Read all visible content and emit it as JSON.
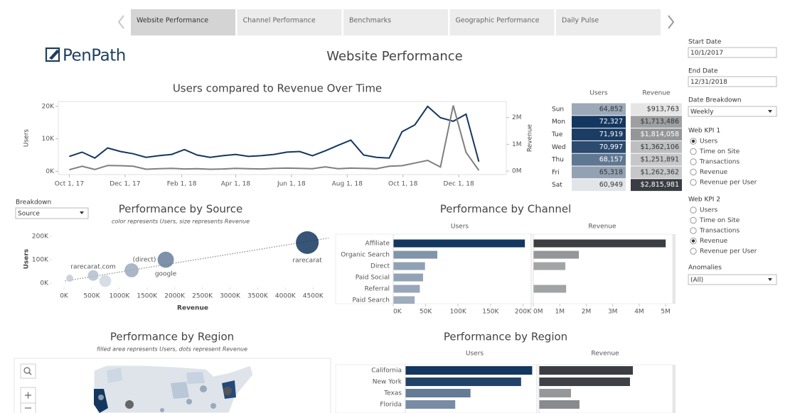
{
  "tabs": [
    "Website Performance",
    "Channel Performance",
    "Benchmarks",
    "Geographic Performance",
    "Daily Pulse"
  ],
  "active_tab": 0,
  "logo": "PenPath",
  "page_title": "Website Performance",
  "filters": {
    "start_date_label": "Start Date",
    "start_date": "10/1/2017",
    "end_date_label": "End Date",
    "end_date": "12/31/2018",
    "date_breakdown_label": "Date Breakdown",
    "date_breakdown": "Weekly",
    "kpi1_label": "Web KPI 1",
    "kpi1_options": [
      "Users",
      "Time on Site",
      "Transactions",
      "Revenue",
      "Revenue per User"
    ],
    "kpi1_selected": 0,
    "kpi2_label": "Web KPI 2",
    "kpi2_options": [
      "Users",
      "Time on Site",
      "Transactions",
      "Revenue",
      "Revenue per User"
    ],
    "kpi2_selected": 3,
    "anomalies_label": "Anomalies",
    "anomalies": "(All)"
  },
  "breakdown": {
    "label": "Breakdown",
    "value": "Source"
  },
  "chart_data": [
    {
      "type": "line",
      "title": "Users compared to Revenue Over Time",
      "x": [
        "2017-10-01",
        "2017-10-15",
        "2017-10-29",
        "2017-11-12",
        "2017-11-26",
        "2017-12-10",
        "2017-12-24",
        "2018-01-07",
        "2018-01-21",
        "2018-02-04",
        "2018-02-18",
        "2018-03-04",
        "2018-03-18",
        "2018-04-01",
        "2018-04-15",
        "2018-04-29",
        "2018-05-13",
        "2018-05-27",
        "2018-06-10",
        "2018-06-24",
        "2018-07-08",
        "2018-07-22",
        "2018-08-05",
        "2018-08-19",
        "2018-09-02",
        "2018-09-16",
        "2018-09-30",
        "2018-10-14",
        "2018-10-28",
        "2018-11-11",
        "2018-11-25",
        "2018-12-09",
        "2018-12-23"
      ],
      "xlim": [
        "2017-09-19",
        "2019-01-22"
      ],
      "xticks": [
        {
          "value": "2017-10-01",
          "label": "Oct 1, 17"
        },
        {
          "value": "2017-12-01",
          "label": "Dec 1, 17"
        },
        {
          "value": "2018-02-01",
          "label": "Feb 1, 18"
        },
        {
          "value": "2018-04-01",
          "label": "Apr 1, 18"
        },
        {
          "value": "2018-06-01",
          "label": "Jun 1, 18"
        },
        {
          "value": "2018-08-01",
          "label": "Aug 1, 18"
        },
        {
          "value": "2018-10-01",
          "label": "Oct 1, 18"
        },
        {
          "value": "2018-12-01",
          "label": "Dec 1, 18"
        }
      ],
      "ylim": [
        -1000,
        21500
      ],
      "yticks": [
        {
          "value": 0,
          "label": "0K"
        },
        {
          "value": 10000,
          "label": "10K"
        },
        {
          "value": 20000,
          "label": "20K"
        }
      ],
      "y2lim": [
        -130000,
        2600000
      ],
      "y2ticks": [
        {
          "value": 0,
          "label": "0M"
        },
        {
          "value": 1000000,
          "label": "1M"
        },
        {
          "value": 2000000,
          "label": "2M"
        }
      ],
      "series": [
        {
          "name": "Users",
          "color": "#14375f",
          "values": [
            4600,
            5900,
            4100,
            7200,
            6100,
            5400,
            4300,
            4800,
            5200,
            6700,
            5000,
            4300,
            4800,
            5200,
            4600,
            4800,
            5200,
            5900,
            6100,
            4800,
            6300,
            8000,
            9600,
            5000,
            4300,
            4100,
            12200,
            14300,
            20000,
            16500,
            15400,
            17600,
            3000
          ]
        },
        {
          "name": "Revenue",
          "color": "#7f7f7f",
          "axis": "y2",
          "values": [
            50000,
            180000,
            60000,
            210000,
            200000,
            180000,
            70000,
            90000,
            100000,
            80000,
            90000,
            70000,
            80000,
            100000,
            90000,
            80000,
            100000,
            110000,
            100000,
            90000,
            160000,
            90000,
            110000,
            100000,
            90000,
            180000,
            200000,
            300000,
            400000,
            150000,
            2450000,
            700000,
            30000
          ]
        }
      ]
    },
    {
      "type": "table",
      "categories": [
        "Sun",
        "Mon",
        "Tue",
        "Wed",
        "Thu",
        "Fri",
        "Sat"
      ],
      "series": [
        {
          "name": "Users",
          "color": "#14375f",
          "values": [
            64852,
            72327,
            71919,
            70997,
            68157,
            65318,
            60949
          ],
          "value_labels": [
            "64,852",
            "72,327",
            "71,919",
            "70,997",
            "68,157",
            "65,318",
            "60,949"
          ]
        },
        {
          "name": "Revenue",
          "color": "#3a3d42",
          "values": [
            913763,
            1713486,
            1814058,
            1362106,
            1251891,
            1262362,
            2815981
          ],
          "value_labels": [
            "$913,763",
            "$1,713,486",
            "$1,814,058",
            "$1,362,106",
            "$1,251,891",
            "$1,262,362",
            "$2,815,981"
          ]
        }
      ]
    },
    {
      "type": "scatter",
      "title": "Performance by Source",
      "subtitle": "color represents Users, size represents Revenue",
      "xlabel": "Revenue",
      "ylabel": "Users",
      "x": [
        4396000,
        1838000,
        1221000,
        527000,
        103000,
        745000
      ],
      "values": [
        173000,
        100000,
        55000,
        33000,
        21000,
        9000
      ],
      "labels": [
        "rarecarat",
        "google",
        "(direct)",
        "rarecarat.com",
        null,
        null
      ],
      "color": "#14375f",
      "xlim": [
        -129000,
        4780000
      ],
      "xticks": [
        {
          "value": 0,
          "label": "0K"
        },
        {
          "value": 500000,
          "label": "500K"
        },
        {
          "value": 1000000,
          "label": "1000K"
        },
        {
          "value": 1500000,
          "label": "1500K"
        },
        {
          "value": 2000000,
          "label": "2000K"
        },
        {
          "value": 2500000,
          "label": "2500K"
        },
        {
          "value": 3000000,
          "label": "3000K"
        },
        {
          "value": 3500000,
          "label": "3500K"
        },
        {
          "value": 4000000,
          "label": "4000K"
        },
        {
          "value": 4500000,
          "label": "4500K"
        }
      ],
      "ylim": [
        -18000,
        224000
      ],
      "yticks": [
        {
          "value": 0,
          "label": "0K"
        },
        {
          "value": 100000,
          "label": "100K"
        },
        {
          "value": 200000,
          "label": "200K"
        }
      ],
      "trendline": true
    },
    {
      "type": "bar",
      "orientation": "horizontal",
      "title": "Performance by Channel",
      "categories": [
        "Affiliate",
        "Organic Search",
        "Direct",
        "Paid Social",
        "Referral",
        "Paid Search"
      ],
      "series": [
        {
          "name": "Users",
          "color": "#14375f",
          "values": [
            203000,
            68000,
            49000,
            46000,
            41000,
            33000
          ],
          "xlim": [
            0,
            205000
          ],
          "xticks": [
            {
              "value": 0,
              "label": "0K"
            },
            {
              "value": 50000,
              "label": "50K"
            },
            {
              "value": 100000,
              "label": "100K"
            },
            {
              "value": 150000,
              "label": "150K"
            },
            {
              "value": 200000,
              "label": "200K"
            }
          ]
        },
        {
          "name": "Revenue",
          "color": "#3a3d42",
          "values": [
            5000000,
            1720000,
            1210000,
            null,
            1240000,
            null
          ],
          "xlim": [
            0,
            5210000
          ],
          "xticks": [
            {
              "value": 0,
              "label": "0M"
            },
            {
              "value": 1000000,
              "label": "1M"
            },
            {
              "value": 2000000,
              "label": "2M"
            },
            {
              "value": 3000000,
              "label": "3M"
            },
            {
              "value": 4000000,
              "label": "4M"
            },
            {
              "value": 5000000,
              "label": "5M"
            }
          ]
        }
      ]
    },
    {
      "type": "map",
      "title": "Performance by Region",
      "subtitle": "filled area represents Users, dots represent Revenue"
    },
    {
      "type": "bar",
      "orientation": "horizontal",
      "title": "Performance by Region",
      "categories": [
        "California",
        "New York",
        "Texas",
        "Florida"
      ],
      "series": [
        {
          "name": "Users",
          "color": "#14375f",
          "values": [
            183000,
            167000,
            94000,
            72000
          ],
          "xlim": [
            0,
            200000
          ]
        },
        {
          "name": "Revenue",
          "color": "#3a3d42",
          "values": [
            3550000,
            3440000,
            1210000,
            1530000
          ],
          "xlim": [
            0,
            5000000
          ]
        }
      ]
    }
  ]
}
